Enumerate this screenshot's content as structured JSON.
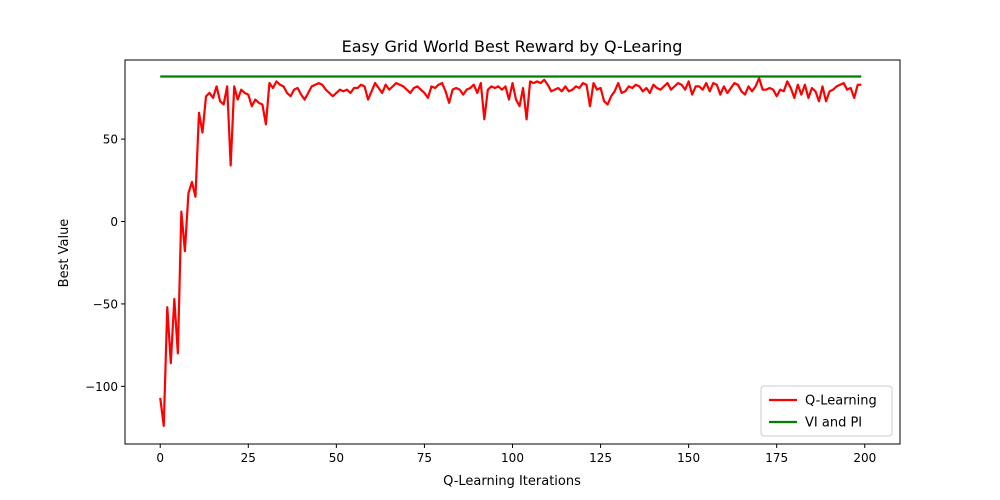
{
  "chart_data": {
    "type": "line",
    "title": "Easy Grid World Best Reward by Q-Learing",
    "xlabel": "Q-Learning Iterations",
    "ylabel": "Best Value",
    "xlim": [
      -10,
      210
    ],
    "ylim": [
      -135,
      98
    ],
    "xticks": [
      0,
      25,
      50,
      75,
      100,
      125,
      150,
      175,
      200
    ],
    "yticks": [
      -100,
      -50,
      0,
      50
    ],
    "grid": false,
    "legend_position": "lower-right",
    "series": [
      {
        "name": "Q-Learning",
        "color": "#ff0000",
        "x": [
          0,
          1,
          2,
          3,
          4,
          5,
          6,
          7,
          8,
          9,
          10,
          11,
          12,
          13,
          14,
          15,
          16,
          17,
          18,
          19,
          20,
          21,
          22,
          23,
          24,
          25,
          26,
          27,
          28,
          29,
          30,
          31,
          32,
          33,
          34,
          35,
          36,
          37,
          38,
          39,
          40,
          41,
          42,
          43,
          44,
          45,
          46,
          47,
          48,
          49,
          50,
          51,
          52,
          53,
          54,
          55,
          56,
          57,
          58,
          59,
          60,
          61,
          62,
          63,
          64,
          65,
          66,
          67,
          68,
          69,
          70,
          71,
          72,
          73,
          74,
          75,
          76,
          77,
          78,
          79,
          80,
          81,
          82,
          83,
          84,
          85,
          86,
          87,
          88,
          89,
          90,
          91,
          92,
          93,
          94,
          95,
          96,
          97,
          98,
          99,
          100,
          101,
          102,
          103,
          104,
          105,
          106,
          107,
          108,
          109,
          110,
          111,
          112,
          113,
          114,
          115,
          116,
          117,
          118,
          119,
          120,
          121,
          122,
          123,
          124,
          125,
          126,
          127,
          128,
          129,
          130,
          131,
          132,
          133,
          134,
          135,
          136,
          137,
          138,
          139,
          140,
          141,
          142,
          143,
          144,
          145,
          146,
          147,
          148,
          149,
          150,
          151,
          152,
          153,
          154,
          155,
          156,
          157,
          158,
          159,
          160,
          161,
          162,
          163,
          164,
          165,
          166,
          167,
          168,
          169,
          170,
          171,
          172,
          173,
          174,
          175,
          176,
          177,
          178,
          179,
          180,
          181,
          182,
          183,
          184,
          185,
          186,
          187,
          188,
          189,
          190,
          191,
          192,
          193,
          194,
          195,
          196,
          197,
          198,
          199
        ],
        "values": [
          -107,
          -124,
          -52,
          -86,
          -47,
          -80,
          6,
          -18,
          17,
          24,
          15,
          66,
          54,
          76,
          78,
          75,
          82,
          73,
          71,
          82,
          34,
          82,
          74,
          80,
          78,
          77,
          70,
          74,
          72,
          71,
          59,
          84,
          81,
          85,
          83,
          82,
          78,
          76,
          80,
          81,
          77,
          74,
          78,
          82,
          83,
          84,
          83,
          80,
          78,
          76,
          78,
          80,
          79,
          80,
          78,
          81,
          81,
          83,
          82,
          74,
          79,
          84,
          81,
          78,
          83,
          80,
          82,
          84,
          83,
          82,
          80,
          78,
          81,
          82,
          80,
          78,
          75,
          82,
          81,
          83,
          84,
          79,
          72,
          80,
          81,
          80,
          77,
          80,
          81,
          83,
          78,
          84,
          62,
          80,
          82,
          81,
          82,
          80,
          82,
          74,
          84,
          74,
          70,
          81,
          62,
          85,
          84,
          85,
          84,
          86,
          83,
          79,
          80,
          81,
          79,
          82,
          79,
          80,
          82,
          81,
          84,
          83,
          70,
          84,
          80,
          81,
          73,
          71,
          76,
          79,
          84,
          78,
          79,
          82,
          81,
          83,
          82,
          79,
          81,
          78,
          83,
          81,
          80,
          82,
          84,
          80,
          82,
          84,
          83,
          80,
          85,
          77,
          82,
          82,
          80,
          84,
          79,
          84,
          83,
          77,
          82,
          78,
          81,
          84,
          83,
          79,
          77,
          82,
          79,
          82,
          87,
          80,
          80,
          81,
          80,
          76,
          80,
          79,
          85,
          81,
          75,
          83,
          77,
          83,
          75,
          81,
          79,
          73,
          82,
          73,
          79,
          80,
          82,
          83,
          84,
          80,
          81,
          75,
          83,
          83
        ]
      },
      {
        "name": "VI and PI",
        "color": "#008000",
        "x": [
          0,
          199
        ],
        "values": [
          88,
          88
        ]
      }
    ]
  }
}
